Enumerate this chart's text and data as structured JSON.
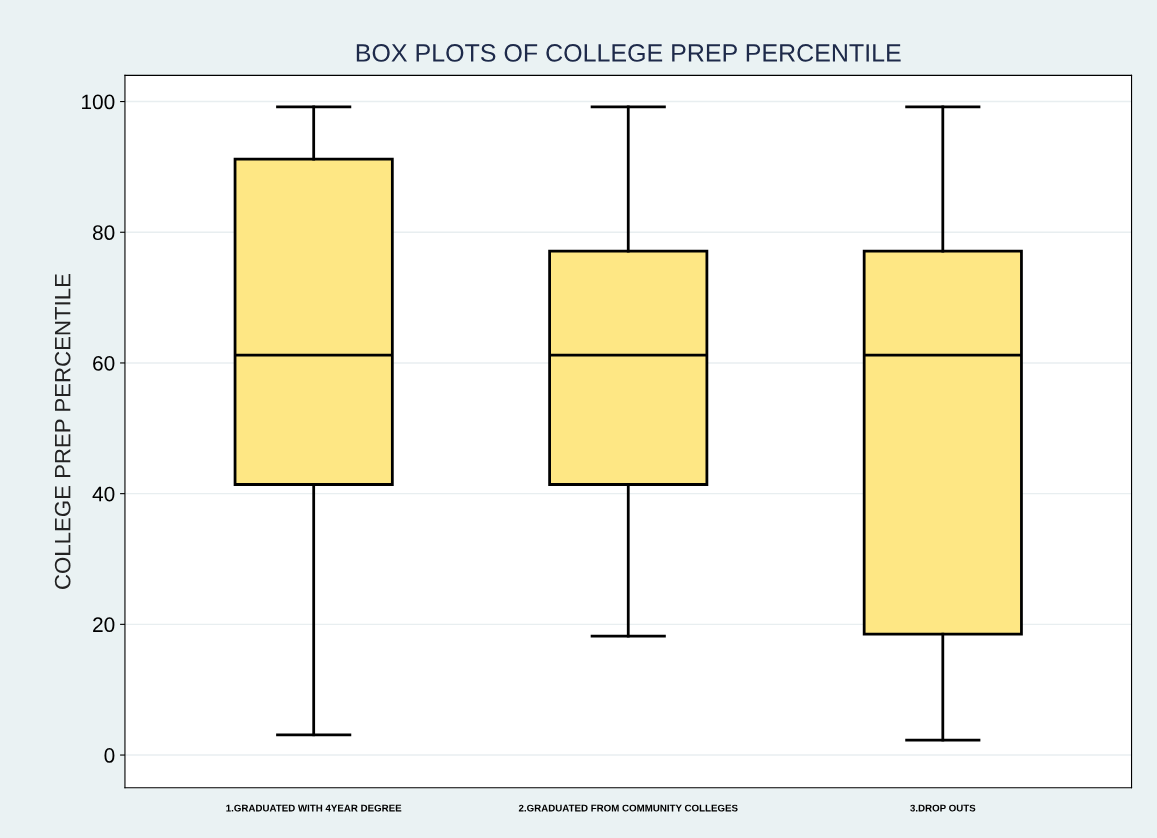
{
  "chart_data": {
    "type": "box",
    "title": "BOX PLOTS OF COLLEGE PREP PERCENTILE",
    "ylabel": "COLLEGE PREP PERCENTILE",
    "categories": [
      "1.GRADUATED WITH 4YEAR DEGREE",
      "2.GRADUATED FROM COMMUNITY COLLEGES",
      "3.DROP OUTS"
    ],
    "color": "#fee784",
    "boxes": [
      {
        "low": 3.1,
        "q1": 41.4,
        "median": 61.2,
        "q3": 91.2,
        "high": 99.2
      },
      {
        "low": 18.2,
        "q1": 41.4,
        "median": 61.2,
        "q3": 77.1,
        "high": 99.2
      },
      {
        "low": 2.3,
        "q1": 18.5,
        "median": 61.2,
        "q3": 77.1,
        "high": 99.2
      }
    ],
    "ylim": [
      -5,
      104
    ],
    "yticks": [
      0,
      20,
      40,
      60,
      80,
      100
    ],
    "grid": "y"
  }
}
